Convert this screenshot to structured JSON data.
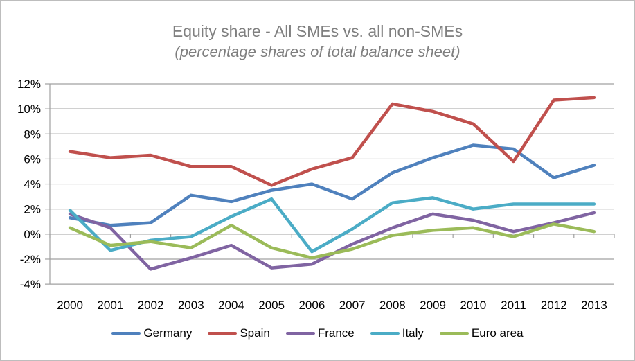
{
  "chart_data": {
    "type": "line",
    "title": "Equity share - All SMEs vs. all non-SMEs",
    "subtitle": "(percentage shares of total balance sheet)",
    "title_color": "#7f7f7f",
    "categories": [
      "2000",
      "2001",
      "2002",
      "2003",
      "2004",
      "2005",
      "2006",
      "2007",
      "2008",
      "2009",
      "2010",
      "2011",
      "2012",
      "2013"
    ],
    "y_ticks": [
      {
        "label": "12%",
        "value": 12
      },
      {
        "label": "10%",
        "value": 10
      },
      {
        "label": "8%",
        "value": 8
      },
      {
        "label": "6%",
        "value": 6
      },
      {
        "label": "4%",
        "value": 4
      },
      {
        "label": "2%",
        "value": 2
      },
      {
        "label": "0%",
        "value": 0
      },
      {
        "label": "-2%",
        "value": -2
      },
      {
        "label": "-4%",
        "value": -4
      }
    ],
    "ylim": [
      -4,
      12
    ],
    "grid": true,
    "gridline_color": "#a0a0a0",
    "legend_position": "bottom",
    "series": [
      {
        "name": "Germany",
        "color": "#4F81BD",
        "values": [
          1.3,
          0.7,
          0.9,
          3.1,
          2.6,
          3.5,
          4.0,
          2.8,
          4.9,
          6.1,
          7.1,
          6.8,
          4.5,
          5.5
        ]
      },
      {
        "name": "Spain",
        "color": "#C0504D",
        "values": [
          6.6,
          6.1,
          6.3,
          5.4,
          5.4,
          3.9,
          5.2,
          6.1,
          10.4,
          9.8,
          8.8,
          5.8,
          10.7,
          10.9
        ]
      },
      {
        "name": "France",
        "color": "#8064A2",
        "values": [
          1.6,
          0.5,
          -2.8,
          -1.9,
          -0.9,
          -2.7,
          -2.4,
          -0.8,
          0.5,
          1.6,
          1.1,
          0.2,
          0.9,
          1.7
        ]
      },
      {
        "name": "Italy",
        "color": "#4BACC6",
        "values": [
          1.9,
          -1.3,
          -0.5,
          -0.2,
          1.4,
          2.8,
          -1.4,
          0.4,
          2.5,
          2.9,
          2.0,
          2.4,
          2.4,
          2.4
        ]
      },
      {
        "name": "Euro area",
        "color": "#9BBB59",
        "values": [
          0.5,
          -0.9,
          -0.6,
          -1.1,
          0.7,
          -1.1,
          -1.9,
          -1.2,
          -0.1,
          0.3,
          0.5,
          -0.2,
          0.8,
          0.2
        ]
      }
    ]
  }
}
